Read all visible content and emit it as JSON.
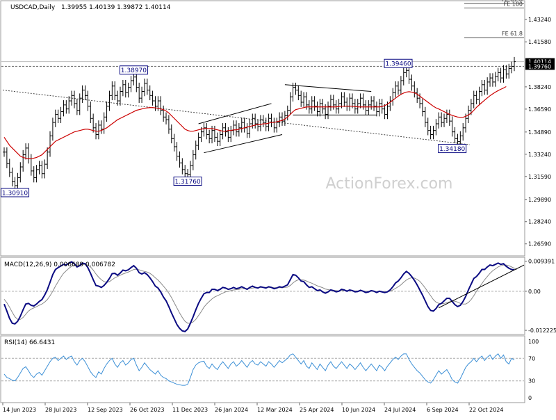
{
  "header": {
    "symbol": "USDCAD,Daily",
    "ohlc": "1.39955 1.40139 1.39872 1.40114"
  },
  "watermark": "ActionForex.com",
  "colors": {
    "price_bars": "#000000",
    "ma": "#cc0000",
    "macd_line": "#0a0a82",
    "macd_signal": "#8a8a8a",
    "rsi": "#3b8fd6",
    "level_label_border": "#0a0a82",
    "current_price_bg": "#000000",
    "grid": "#bbbbbb",
    "level_line": "#555555",
    "watermark": "#cfcfcf"
  },
  "chart_data": [
    {
      "type": "line",
      "name": "price-panel",
      "price_style": "ohlc-bars",
      "x_tick_labels": [
        "14 Jun 2023",
        "28 Jul 2023",
        "12 Sep 2023",
        "26 Oct 2023",
        "11 Dec 2023",
        "26 Jan 2024",
        "12 Mar 2024",
        "25 Apr 2024",
        "10 Jun 2024",
        "24 Jul 2024",
        "6 Sep 2024",
        "22 Oct 2024"
      ],
      "y_tick_labels": [
        "1.43240",
        "1.41580",
        "1.39760",
        "1.38240",
        "1.36590",
        "1.34890",
        "1.33240",
        "1.31590",
        "1.29890",
        "1.28240",
        "1.26590"
      ],
      "ylim": [
        1.2575,
        1.4458
      ],
      "price_tags": {
        "price": "1.40114",
        "level": "1.39760"
      },
      "key_levels": [
        {
          "label": "1.30910",
          "value": 1.3091,
          "bar": 4
        },
        {
          "label": "1.38970",
          "value": 1.3897,
          "bar": 48
        },
        {
          "label": "1.31760",
          "value": 1.3176,
          "bar": 68
        },
        {
          "label": "1.39460",
          "value": 1.3946,
          "bar": 146
        },
        {
          "label": "1.34180",
          "value": 1.3418,
          "bar": 166
        }
      ],
      "fe_levels": [
        {
          "label": "FE 61.8",
          "value": 1.4189
        },
        {
          "label": "FE 61.8",
          "value": 1.4442
        },
        {
          "label": "FE 100",
          "value": 1.4409
        }
      ],
      "close": [
        1.334,
        1.3255,
        1.319,
        1.312,
        1.3091,
        1.315,
        1.323,
        1.332,
        1.337,
        1.329,
        1.32,
        1.315,
        1.321,
        1.324,
        1.318,
        1.325,
        1.334,
        1.346,
        1.356,
        1.362,
        1.359,
        1.364,
        1.369,
        1.366,
        1.372,
        1.376,
        1.37,
        1.365,
        1.374,
        1.38,
        1.376,
        1.368,
        1.359,
        1.352,
        1.347,
        1.354,
        1.351,
        1.36,
        1.368,
        1.376,
        1.383,
        1.376,
        1.372,
        1.379,
        1.384,
        1.378,
        1.382,
        1.387,
        1.3897,
        1.382,
        1.374,
        1.379,
        1.385,
        1.38,
        1.376,
        1.372,
        1.368,
        1.372,
        1.365,
        1.36,
        1.358,
        1.351,
        1.344,
        1.338,
        1.331,
        1.326,
        1.321,
        1.318,
        1.3176,
        1.324,
        1.332,
        1.339,
        1.345,
        1.349,
        1.352,
        1.347,
        1.344,
        1.35,
        1.345,
        1.342,
        1.347,
        1.352,
        1.349,
        1.345,
        1.35,
        1.354,
        1.349,
        1.352,
        1.356,
        1.352,
        1.348,
        1.355,
        1.359,
        1.355,
        1.353,
        1.358,
        1.356,
        1.353,
        1.359,
        1.356,
        1.352,
        1.356,
        1.36,
        1.357,
        1.361,
        1.365,
        1.375,
        1.382,
        1.38,
        1.376,
        1.371,
        1.375,
        1.369,
        1.366,
        1.372,
        1.368,
        1.364,
        1.37,
        1.366,
        1.362,
        1.368,
        1.373,
        1.369,
        1.366,
        1.37,
        1.375,
        1.371,
        1.368,
        1.374,
        1.37,
        1.366,
        1.37,
        1.374,
        1.369,
        1.365,
        1.369,
        1.372,
        1.368,
        1.364,
        1.37,
        1.366,
        1.362,
        1.368,
        1.372,
        1.378,
        1.383,
        1.38,
        1.387,
        1.393,
        1.3946,
        1.388,
        1.383,
        1.378,
        1.374,
        1.37,
        1.364,
        1.356,
        1.35,
        1.347,
        1.35,
        1.355,
        1.36,
        1.356,
        1.359,
        1.362,
        1.357,
        1.349,
        1.344,
        1.3418,
        1.346,
        1.352,
        1.359,
        1.365,
        1.37,
        1.376,
        1.373,
        1.379,
        1.384,
        1.38,
        1.386,
        1.389,
        1.386,
        1.39,
        1.393,
        1.389,
        1.395,
        1.392,
        1.396,
        1.3976,
        1.4011
      ],
      "ma": [
        1.345,
        1.342,
        1.339,
        1.337,
        1.335,
        1.333,
        1.331,
        1.33,
        1.3295,
        1.329,
        1.329,
        1.3295,
        1.33,
        1.331,
        1.332,
        1.334,
        1.336,
        1.338,
        1.34,
        1.342,
        1.343,
        1.344,
        1.345,
        1.346,
        1.347,
        1.348,
        1.349,
        1.3495,
        1.35,
        1.3505,
        1.351,
        1.351,
        1.3505,
        1.35,
        1.3495,
        1.3495,
        1.35,
        1.351,
        1.352,
        1.3535,
        1.355,
        1.3565,
        1.358,
        1.359,
        1.36,
        1.361,
        1.362,
        1.363,
        1.364,
        1.365,
        1.3655,
        1.366,
        1.3665,
        1.3668,
        1.367,
        1.367,
        1.3668,
        1.3665,
        1.366,
        1.3655,
        1.3645,
        1.363,
        1.361,
        1.359,
        1.357,
        1.355,
        1.353,
        1.351,
        1.35,
        1.3495,
        1.3495,
        1.35,
        1.3505,
        1.351,
        1.3515,
        1.3515,
        1.3515,
        1.3515,
        1.351,
        1.3505,
        1.35,
        1.3495,
        1.3495,
        1.35,
        1.35,
        1.3505,
        1.3505,
        1.351,
        1.3515,
        1.352,
        1.3525,
        1.353,
        1.3535,
        1.354,
        1.3545,
        1.3545,
        1.355,
        1.355,
        1.3555,
        1.356,
        1.356,
        1.3565,
        1.357,
        1.3575,
        1.3585,
        1.36,
        1.362,
        1.364,
        1.3655,
        1.366,
        1.3665,
        1.367,
        1.3675,
        1.3675,
        1.3675,
        1.3675,
        1.3675,
        1.3675,
        1.3675,
        1.3675,
        1.3675,
        1.3675,
        1.3675,
        1.3675,
        1.3678,
        1.368,
        1.368,
        1.368,
        1.368,
        1.368,
        1.3678,
        1.3675,
        1.3675,
        1.3675,
        1.3675,
        1.3675,
        1.3675,
        1.3675,
        1.3675,
        1.3675,
        1.3678,
        1.3685,
        1.3695,
        1.371,
        1.3725,
        1.374,
        1.3755,
        1.3768,
        1.3778,
        1.3785,
        1.3788,
        1.3785,
        1.378,
        1.377,
        1.3755,
        1.374,
        1.3725,
        1.371,
        1.3695,
        1.368,
        1.3668,
        1.366,
        1.365,
        1.364,
        1.363,
        1.362,
        1.3612,
        1.3606,
        1.36,
        1.3598,
        1.3598,
        1.3605,
        1.3615,
        1.363,
        1.365,
        1.3672,
        1.369,
        1.3708,
        1.3725,
        1.3742,
        1.3758,
        1.3772,
        1.3785,
        1.3796,
        1.3806,
        1.3815,
        1.3826
      ]
    },
    {
      "type": "line",
      "name": "macd-panel",
      "title": "MACD(12,26,9) 0.006689 0.006782",
      "series_names": [
        "MACD",
        "Signal"
      ],
      "y_tick_labels": [
        "0.009391",
        "0.00",
        "-0.012225"
      ],
      "ylim": [
        -0.0133,
        0.0104
      ],
      "macd": [
        -0.004,
        -0.0062,
        -0.0085,
        -0.01,
        -0.0102,
        -0.0094,
        -0.0078,
        -0.0058,
        -0.004,
        -0.0038,
        -0.0044,
        -0.0046,
        -0.004,
        -0.0032,
        -0.0026,
        -0.0012,
        0.0005,
        0.0028,
        0.0052,
        0.0068,
        0.0074,
        0.0079,
        0.0084,
        0.0082,
        0.0088,
        0.0092,
        0.0086,
        0.0076,
        0.008,
        0.0088,
        0.0086,
        0.0074,
        0.0056,
        0.0036,
        0.0018,
        0.0016,
        0.0012,
        0.0018,
        0.0028,
        0.004,
        0.0055,
        0.0056,
        0.005,
        0.0057,
        0.0066,
        0.0064,
        0.0067,
        0.0074,
        0.008,
        0.0072,
        0.0058,
        0.0054,
        0.0058,
        0.0052,
        0.0042,
        0.003,
        0.0016,
        0.001,
        -0.0002,
        -0.0018,
        -0.003,
        -0.0048,
        -0.0068,
        -0.0086,
        -0.0104,
        -0.0116,
        -0.0124,
        -0.0126,
        -0.0118,
        -0.01,
        -0.008,
        -0.0058,
        -0.0038,
        -0.0022,
        -0.0008,
        -0.0004,
        -0.0004,
        0.0006,
        0.0006,
        0.0002,
        0.0006,
        0.0012,
        0.001,
        0.0006,
        0.0008,
        0.0012,
        0.0008,
        0.001,
        0.0014,
        0.001,
        0.0006,
        0.0012,
        0.0016,
        0.0012,
        0.001,
        0.0014,
        0.0012,
        0.001,
        0.0014,
        0.0012,
        0.0008,
        0.001,
        0.0014,
        0.0012,
        0.0016,
        0.002,
        0.0036,
        0.0052,
        0.005,
        0.0042,
        0.0032,
        0.003,
        0.002,
        0.0012,
        0.0014,
        0.0008,
        0.0002,
        0.0004,
        -0.0002,
        -0.0006,
        -0.0002,
        0.0004,
        0.0002,
        -0.0002,
        0.0,
        0.0006,
        0.0004,
        0.0,
        0.0004,
        0.0002,
        -0.0002,
        -0.0001,
        0.0003,
        0.0,
        -0.0004,
        -0.0002,
        0.0002,
        0.0,
        -0.0004,
        0.0,
        -0.0002,
        -0.0004,
        -0.0002,
        0.0004,
        0.0014,
        0.0026,
        0.0032,
        0.0042,
        0.0054,
        0.0062,
        0.0056,
        0.0046,
        0.0034,
        0.002,
        0.0004,
        -0.0012,
        -0.003,
        -0.0048,
        -0.006,
        -0.0062,
        -0.0054,
        -0.0042,
        -0.0038,
        -0.003,
        -0.0022,
        -0.0022,
        -0.0032,
        -0.0042,
        -0.0048,
        -0.0044,
        -0.0032,
        -0.0016,
        0.0004,
        0.0022,
        0.004,
        0.0046,
        0.0056,
        0.0068,
        0.0068,
        0.0076,
        0.0082,
        0.008,
        0.0084,
        0.0088,
        0.0084,
        0.0086,
        0.0078,
        0.0072,
        0.0068,
        0.0067
      ],
      "signal": [
        -0.0025,
        -0.0036,
        -0.005,
        -0.0066,
        -0.008,
        -0.0088,
        -0.0088,
        -0.0082,
        -0.0072,
        -0.0062,
        -0.0056,
        -0.0052,
        -0.0048,
        -0.0044,
        -0.004,
        -0.0034,
        -0.0026,
        -0.0014,
        0.0,
        0.0016,
        0.003,
        0.0044,
        0.0056,
        0.0064,
        0.0072,
        0.0078,
        0.0082,
        0.0082,
        0.0082,
        0.0084,
        0.0084,
        0.0082,
        0.0076,
        0.0066,
        0.0054,
        0.0044,
        0.0036,
        0.003,
        0.0028,
        0.003,
        0.0036,
        0.0042,
        0.0046,
        0.005,
        0.0054,
        0.0057,
        0.006,
        0.0064,
        0.0068,
        0.0069,
        0.0067,
        0.0064,
        0.0062,
        0.006,
        0.0056,
        0.005,
        0.0042,
        0.0035,
        0.0026,
        0.0016,
        0.0006,
        -0.0006,
        -0.002,
        -0.0036,
        -0.0052,
        -0.0068,
        -0.0082,
        -0.0094,
        -0.01,
        -0.01,
        -0.0096,
        -0.0088,
        -0.0076,
        -0.0064,
        -0.005,
        -0.004,
        -0.0032,
        -0.0024,
        -0.0018,
        -0.0014,
        -0.001,
        -0.0006,
        -0.0002,
        0.0,
        0.0002,
        0.0004,
        0.0005,
        0.0006,
        0.0008,
        0.0008,
        0.0008,
        0.0009,
        0.001,
        0.0011,
        0.0011,
        0.0012,
        0.0012,
        0.0012,
        0.0012,
        0.0012,
        0.0011,
        0.0011,
        0.0011,
        0.0011,
        0.0012,
        0.0013,
        0.0018,
        0.0026,
        0.0032,
        0.0036,
        0.0036,
        0.0035,
        0.0032,
        0.0028,
        0.0025,
        0.0021,
        0.0017,
        0.0014,
        0.0011,
        0.0007,
        0.0005,
        0.0004,
        0.0003,
        0.0002,
        0.0001,
        0.0002,
        0.0003,
        0.0002,
        0.0002,
        0.0002,
        0.0001,
        0.0001,
        0.0001,
        0.0001,
        0.0,
        0.0,
        0.0,
        0.0,
        -0.0001,
        -0.0001,
        -0.0001,
        -0.0002,
        -0.0002,
        0.0,
        0.0004,
        0.0009,
        0.0014,
        0.002,
        0.0028,
        0.0035,
        0.004,
        0.0042,
        0.0041,
        0.0037,
        0.0031,
        0.0021,
        0.001,
        -0.0002,
        -0.0014,
        -0.0026,
        -0.0034,
        -0.0038,
        -0.0039,
        -0.0038,
        -0.0036,
        -0.0033,
        -0.0031,
        -0.0031,
        -0.0034,
        -0.0038,
        -0.004,
        -0.004,
        -0.0035,
        -0.0026,
        -0.0014,
        0.0,
        0.0012,
        0.0024,
        0.0036,
        0.0046,
        0.0056,
        0.0064,
        0.007,
        0.0076,
        0.008,
        0.0082,
        0.0082,
        0.008,
        0.0076,
        0.0072,
        0.0068
      ]
    },
    {
      "type": "line",
      "name": "rsi-panel",
      "title": "RSI(14) 66.6431",
      "series_names": [
        "RSI"
      ],
      "y_tick_labels": [
        "100",
        "70",
        "30",
        "0"
      ],
      "ylim": [
        0,
        100
      ],
      "rsi": [
        42,
        36,
        34,
        31,
        30,
        36,
        44,
        52,
        55,
        48,
        40,
        36,
        42,
        45,
        40,
        48,
        56,
        64,
        70,
        72,
        66,
        70,
        74,
        68,
        72,
        74,
        64,
        58,
        66,
        70,
        64,
        55,
        46,
        40,
        36,
        46,
        42,
        52,
        60,
        66,
        70,
        60,
        54,
        62,
        66,
        58,
        62,
        68,
        70,
        58,
        48,
        54,
        62,
        56,
        50,
        46,
        42,
        48,
        40,
        36,
        34,
        30,
        28,
        26,
        24,
        23,
        22,
        22,
        24,
        36,
        50,
        58,
        62,
        64,
        65,
        56,
        52,
        60,
        54,
        50,
        58,
        64,
        58,
        52,
        60,
        64,
        56,
        60,
        66,
        60,
        54,
        62,
        66,
        60,
        58,
        64,
        60,
        56,
        64,
        60,
        54,
        60,
        66,
        62,
        66,
        70,
        76,
        78,
        72,
        66,
        60,
        66,
        56,
        52,
        62,
        56,
        50,
        60,
        54,
        48,
        58,
        64,
        56,
        52,
        58,
        64,
        58,
        52,
        60,
        56,
        50,
        56,
        62,
        54,
        48,
        54,
        60,
        54,
        48,
        58,
        54,
        48,
        56,
        62,
        68,
        72,
        68,
        74,
        78,
        78,
        68,
        60,
        54,
        48,
        44,
        38,
        32,
        28,
        26,
        32,
        40,
        48,
        42,
        46,
        50,
        42,
        32,
        28,
        26,
        34,
        44,
        54,
        60,
        64,
        70,
        64,
        70,
        74,
        66,
        72,
        76,
        68,
        74,
        78,
        70,
        76,
        64,
        60,
        70,
        67
      ]
    }
  ]
}
